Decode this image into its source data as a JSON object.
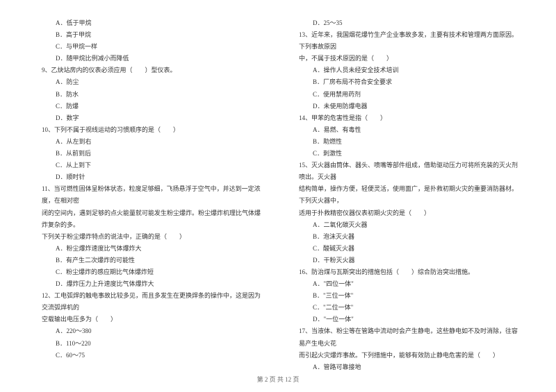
{
  "leftColumn": {
    "options1": [
      "A．低于甲烷",
      "B．高于甲烷",
      "C．与甲烷一样",
      "D．随甲烷比例减小而降低"
    ],
    "q9": "9、乙炔站房内的仪表必须应用（　　）型仪表。",
    "q9options": [
      "A．防尘",
      "B．防水",
      "C．防爆",
      "D．数字"
    ],
    "q10": "10、下列不属于视线运动的习惯顺序的是（　　）",
    "q10options": [
      "A．从左到右",
      "B．从前到后",
      "C．从上到下",
      "D．顺时针"
    ],
    "q11a": "11、当可燃性固体呈粉体状态，粒度足够细，飞扬悬浮于空气中，并达到一定浓度，在相对密",
    "q11b": "闭的空间内，遇到足够的点火能量就可能发生粉尘爆炸。粉尘爆炸机理比气体爆炸复杂的多。",
    "q11c": "下列关于粉尘爆炸特点的说法中，正确的是（　　）",
    "q11options": [
      "A．粉尘爆炸速度比气体爆炸大",
      "B．有产生二次爆炸的可能性",
      "C．粉尘爆炸的感应期比气体爆炸短",
      "D．爆炸压力上升速度比气体爆炸大"
    ],
    "q12a": "12、工电弧焊的触电事故比较多见，而且多发生在更换焊条的操作中，这是因为交流弧焊机的",
    "q12b": "空载输出电压多为（　　）",
    "q12options": [
      "A．220～380",
      "B．110～220",
      "C．60～75"
    ]
  },
  "rightColumn": {
    "optD": "D．25～35",
    "q13a": "13、近年来，我国烟花爆竹生产企业事故多发，主要有技术和管理两方面原因。下列事故原因",
    "q13b": "中，不属于技术原因的是（　　）",
    "q13options": [
      "A．操作人员未经安全技术培训",
      "B．厂房布局不符合安全要求",
      "C．使用禁用药剂",
      "D．未使用防爆电器"
    ],
    "q14": "14、甲苯的危害性是指（　　）",
    "q14options": [
      "A．易燃、有毒性",
      "B．助燃性",
      "C．刺激性"
    ],
    "q15a": "15、灭火器由筒体、器头、喷嘴等部件组成，借助驱动压力可将所充装的灭火剂喷出。灭火器",
    "q15b": "结构简单，操作方便，轻便灵活，使用面广，是扑救初期火灾的重要消防器材。下列灭火器中，",
    "q15c": "适用于扑救精密仪器仪表初期火灾的是（　　）",
    "q15options": [
      "A．二氧化碳灭火器",
      "B．泡沫灭火器",
      "C．酸碱灭火器",
      "D．干粉灭火器"
    ],
    "q16": "16、防治煤与瓦斯突出的措施包括（　　）综合防治突出措施。",
    "q16options": [
      "A．\"四位一体\"",
      "B．\"三位一体\"",
      "C．\"二位一体\"",
      "D．\"一位一体\""
    ],
    "q17a": "17、当液体、粉尘等在管路中流动时会产生静电，这些静电如不及时消除，往容易产生电火花",
    "q17b": "而引起火灾爆炸事故。下列措施中，能够有效防止静电危害的是（　　）",
    "q17options": [
      "A．管路可靠接地"
    ]
  },
  "footer": "第 2 页 共 12 页"
}
